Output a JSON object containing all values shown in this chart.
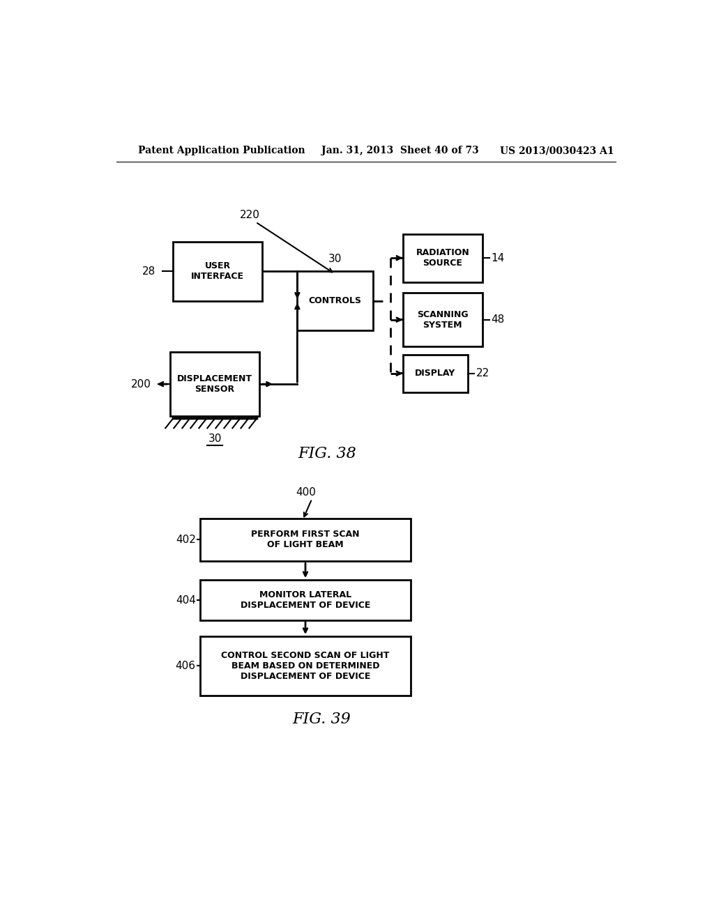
{
  "background_color": "#ffffff",
  "header_left": "Patent Application Publication",
  "header_center": "Jan. 31, 2013  Sheet 40 of 73",
  "header_right": "US 2013/0030423 A1",
  "fig38_label": "FIG. 38",
  "fig39_label": "FIG. 39",
  "label_220": "220",
  "label_30_ctrl": "30",
  "label_28": "28",
  "label_14": "14",
  "label_48": "48",
  "label_22": "22",
  "label_200": "200",
  "label_30_floor": "30",
  "box_user_interface": "USER\nINTERFACE",
  "box_controls": "CONTROLS",
  "box_radiation_source": "RADIATION\nSOURCE",
  "box_scanning_system": "SCANNING\nSYSTEM",
  "box_display": "DISPLAY",
  "box_displacement_sensor": "DISPLACEMENT\nSENSOR",
  "label_400": "400",
  "label_402": "402",
  "label_404": "404",
  "label_406": "406",
  "box_402": "PERFORM FIRST SCAN\nOF LIGHT BEAM",
  "box_404": "MONITOR LATERAL\nDISPLACEMENT OF DEVICE",
  "box_406": "CONTROL SECOND SCAN OF LIGHT\nBEAM BASED ON DETERMINED\nDISPLACEMENT OF DEVICE"
}
